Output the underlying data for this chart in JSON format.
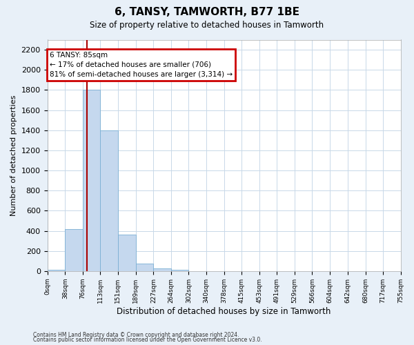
{
  "title": "6, TANSY, TAMWORTH, B77 1BE",
  "subtitle": "Size of property relative to detached houses in Tamworth",
  "xlabel": "Distribution of detached houses by size in Tamworth",
  "ylabel": "Number of detached properties",
  "bar_color": "#c5d8ee",
  "bar_edge_color": "#7aafd4",
  "grid_color": "#c8d8e8",
  "annotation_box_color": "#cc0000",
  "vline_color": "#aa0000",
  "bin_edges": [
    0,
    38,
    76,
    113,
    151,
    189,
    227,
    264,
    302,
    340,
    378,
    415,
    453,
    491,
    529,
    566,
    604,
    642,
    680,
    717,
    755
  ],
  "bin_labels": [
    "0sqm",
    "38sqm",
    "76sqm",
    "113sqm",
    "151sqm",
    "189sqm",
    "227sqm",
    "264sqm",
    "302sqm",
    "340sqm",
    "378sqm",
    "415sqm",
    "453sqm",
    "491sqm",
    "529sqm",
    "566sqm",
    "604sqm",
    "642sqm",
    "680sqm",
    "717sqm",
    "755sqm"
  ],
  "bar_heights": [
    15,
    420,
    1800,
    1400,
    360,
    75,
    25,
    15,
    0,
    0,
    0,
    0,
    0,
    0,
    0,
    0,
    0,
    0,
    0,
    0
  ],
  "vline_x": 85,
  "annotation_line1": "6 TANSY: 85sqm",
  "annotation_line2": "← 17% of detached houses are smaller (706)",
  "annotation_line3": "81% of semi-detached houses are larger (3,314) →",
  "ylim": [
    0,
    2300
  ],
  "yticks": [
    0,
    200,
    400,
    600,
    800,
    1000,
    1200,
    1400,
    1600,
    1800,
    2000,
    2200
  ],
  "footnote1": "Contains HM Land Registry data © Crown copyright and database right 2024.",
  "footnote2": "Contains public sector information licensed under the Open Government Licence v3.0.",
  "bg_color": "#e8f0f8",
  "plot_bg_color": "#ffffff"
}
